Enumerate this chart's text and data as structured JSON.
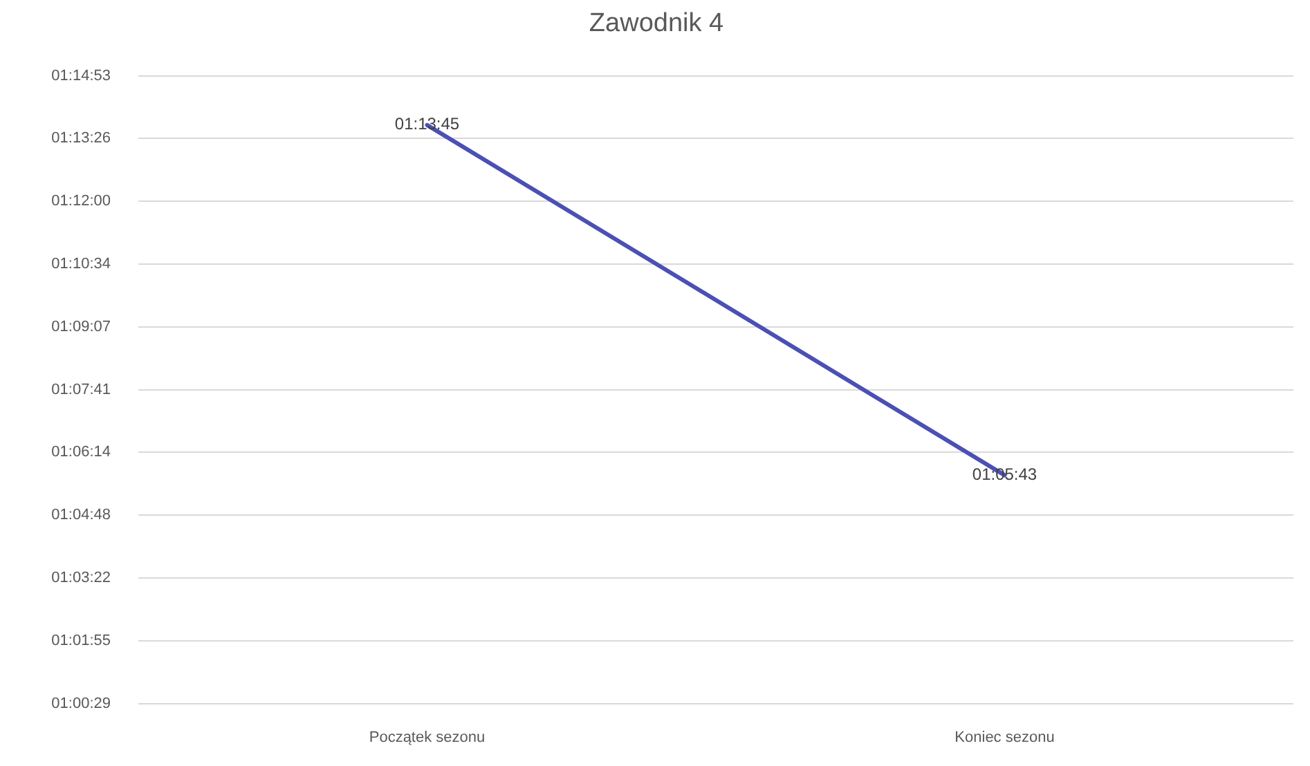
{
  "chart_data": {
    "type": "line",
    "title": "Zawodnik 4",
    "categories": [
      "Początek sezonu",
      "Koniec sezonu"
    ],
    "values": [
      1.229167,
      1.095278
    ],
    "value_labels": [
      "01:13:45",
      "01:05:43"
    ],
    "color": "#4b50b4",
    "ylim": [
      1.008,
      1.248
    ],
    "yticks": [
      {
        "value": 1.008,
        "label": "01:00:29"
      },
      {
        "value": 1.032,
        "label": "01:01:55"
      },
      {
        "value": 1.056,
        "label": "01:03:22"
      },
      {
        "value": 1.08,
        "label": "01:04:48"
      },
      {
        "value": 1.104,
        "label": "01:06:14"
      },
      {
        "value": 1.128,
        "label": "01:07:41"
      },
      {
        "value": 1.152,
        "label": "01:09:07"
      },
      {
        "value": 1.176,
        "label": "01:10:34"
      },
      {
        "value": 1.2,
        "label": "01:12:00"
      },
      {
        "value": 1.224,
        "label": "01:13:26"
      },
      {
        "value": 1.248,
        "label": "01:14:53"
      }
    ],
    "grid": "y",
    "legend": false,
    "marker": "none",
    "line_style": "solid"
  }
}
